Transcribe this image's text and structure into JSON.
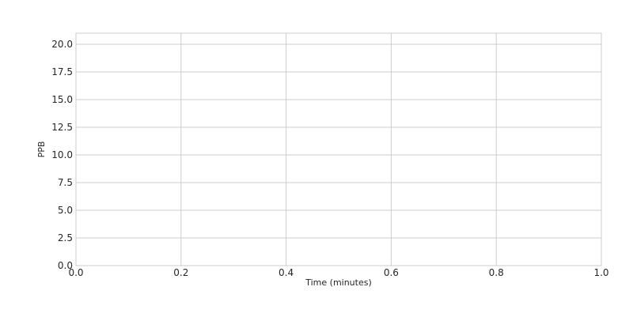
{
  "chart_data": {
    "type": "line",
    "title": "",
    "xlabel": "Time (minutes)",
    "ylabel": "PPB",
    "xlim": [
      0.0,
      1.0
    ],
    "ylim": [
      0.0,
      21.0
    ],
    "xticks": [
      0.0,
      0.2,
      0.4,
      0.6,
      0.8,
      1.0
    ],
    "xtick_labels": [
      "0.0",
      "0.2",
      "0.4",
      "0.6",
      "0.8",
      "1.0"
    ],
    "yticks": [
      0.0,
      2.5,
      5.0,
      7.5,
      10.0,
      12.5,
      15.0,
      17.5,
      20.0
    ],
    "ytick_labels": [
      "0.0",
      "2.5",
      "5.0",
      "7.5",
      "10.0",
      "12.5",
      "15.0",
      "17.5",
      "20.0"
    ],
    "grid": true,
    "series": [],
    "colors": {
      "grid": "#cccccc",
      "text": "#262626",
      "background": "#ffffff"
    }
  }
}
